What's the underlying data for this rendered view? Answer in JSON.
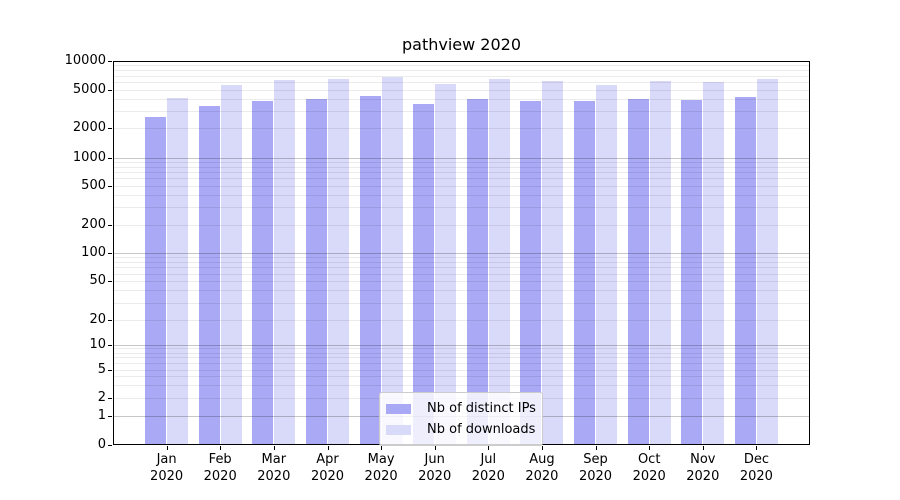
{
  "chart_data": {
    "type": "bar",
    "title": "pathview 2020",
    "categories": [
      "Jan",
      "Feb",
      "Mar",
      "Apr",
      "May",
      "Jun",
      "Jul",
      "Aug",
      "Sep",
      "Oct",
      "Nov",
      "Dec"
    ],
    "category_year": "2020",
    "series": [
      {
        "name": "Nb of distinct IPs",
        "color": "#a9a9f5",
        "values": [
          2600,
          3350,
          3850,
          4000,
          4250,
          3550,
          3950,
          3800,
          3850,
          4000,
          3900,
          4200
        ]
      },
      {
        "name": "Nb of downloads",
        "color": "#d9d9f9",
        "values": [
          4100,
          5550,
          6250,
          6400,
          6800,
          5700,
          6500,
          6100,
          5600,
          6100,
          6000,
          6450
        ]
      }
    ],
    "yscale": "symlog",
    "ylim": [
      0,
      10000
    ],
    "y_ticks": [
      10000,
      5000,
      2000,
      1000,
      500,
      200,
      100,
      50,
      20,
      10,
      5,
      2,
      1,
      0
    ],
    "grid": true,
    "legend_position": "lower center"
  }
}
